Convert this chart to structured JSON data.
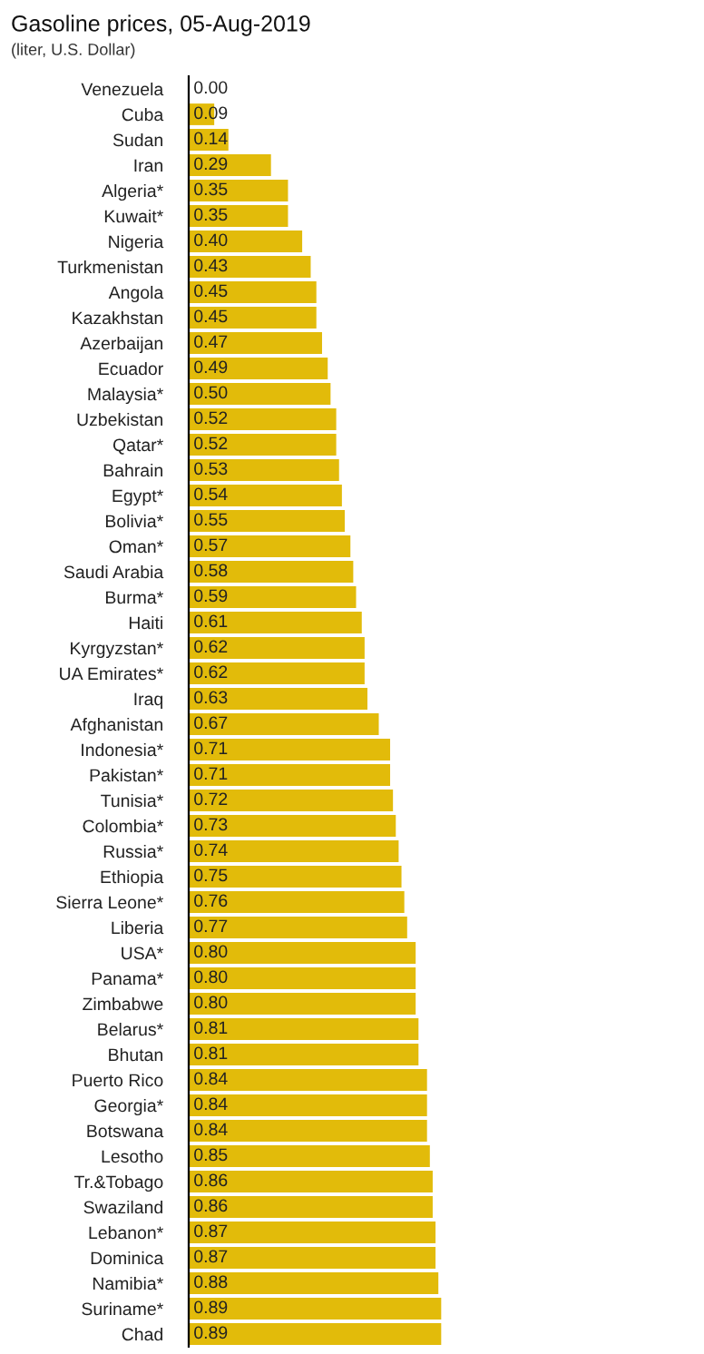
{
  "chart_data": {
    "type": "bar",
    "orientation": "horizontal",
    "title": "Gasoline prices, 05-Aug-2019",
    "subtitle": "(liter, U.S. Dollar)",
    "categories": [
      "Venezuela",
      "Cuba",
      "Sudan",
      "Iran",
      "Algeria*",
      "Kuwait*",
      "Nigeria",
      "Turkmenistan",
      "Angola",
      "Kazakhstan",
      "Azerbaijan",
      "Ecuador",
      "Malaysia*",
      "Uzbekistan",
      "Qatar*",
      "Bahrain",
      "Egypt*",
      "Bolivia*",
      "Oman*",
      "Saudi Arabia",
      "Burma*",
      "Haiti",
      "Kyrgyzstan*",
      "UA Emirates*",
      "Iraq",
      "Afghanistan",
      "Indonesia*",
      "Pakistan*",
      "Tunisia*",
      "Colombia*",
      "Russia*",
      "Ethiopia",
      "Sierra Leone*",
      "Liberia",
      "USA*",
      "Panama*",
      "Zimbabwe",
      "Belarus*",
      "Bhutan",
      "Puerto Rico",
      "Georgia*",
      "Botswana",
      "Lesotho",
      "Tr.&Tobago",
      "Swaziland",
      "Lebanon*",
      "Dominica",
      "Namibia*",
      "Suriname*",
      "Chad"
    ],
    "values": [
      0.0,
      0.09,
      0.14,
      0.29,
      0.35,
      0.35,
      0.4,
      0.43,
      0.45,
      0.45,
      0.47,
      0.49,
      0.5,
      0.52,
      0.52,
      0.53,
      0.54,
      0.55,
      0.57,
      0.58,
      0.59,
      0.61,
      0.62,
      0.62,
      0.63,
      0.67,
      0.71,
      0.71,
      0.72,
      0.73,
      0.74,
      0.75,
      0.76,
      0.77,
      0.8,
      0.8,
      0.8,
      0.81,
      0.81,
      0.84,
      0.84,
      0.84,
      0.85,
      0.86,
      0.86,
      0.87,
      0.87,
      0.88,
      0.89,
      0.89
    ],
    "value_labels": [
      "0.00",
      "0.09",
      "0.14",
      "0.29",
      "0.35",
      "0.35",
      "0.40",
      "0.43",
      "0.45",
      "0.45",
      "0.47",
      "0.49",
      "0.50",
      "0.52",
      "0.52",
      "0.53",
      "0.54",
      "0.55",
      "0.57",
      "0.58",
      "0.59",
      "0.61",
      "0.62",
      "0.62",
      "0.63",
      "0.67",
      "0.71",
      "0.71",
      "0.72",
      "0.73",
      "0.74",
      "0.75",
      "0.76",
      "0.77",
      "0.80",
      "0.80",
      "0.80",
      "0.81",
      "0.81",
      "0.84",
      "0.84",
      "0.84",
      "0.85",
      "0.86",
      "0.86",
      "0.87",
      "0.87",
      "0.88",
      "0.89",
      "0.89"
    ],
    "color": "#e2bb0a",
    "grid": false,
    "legend": false
  }
}
